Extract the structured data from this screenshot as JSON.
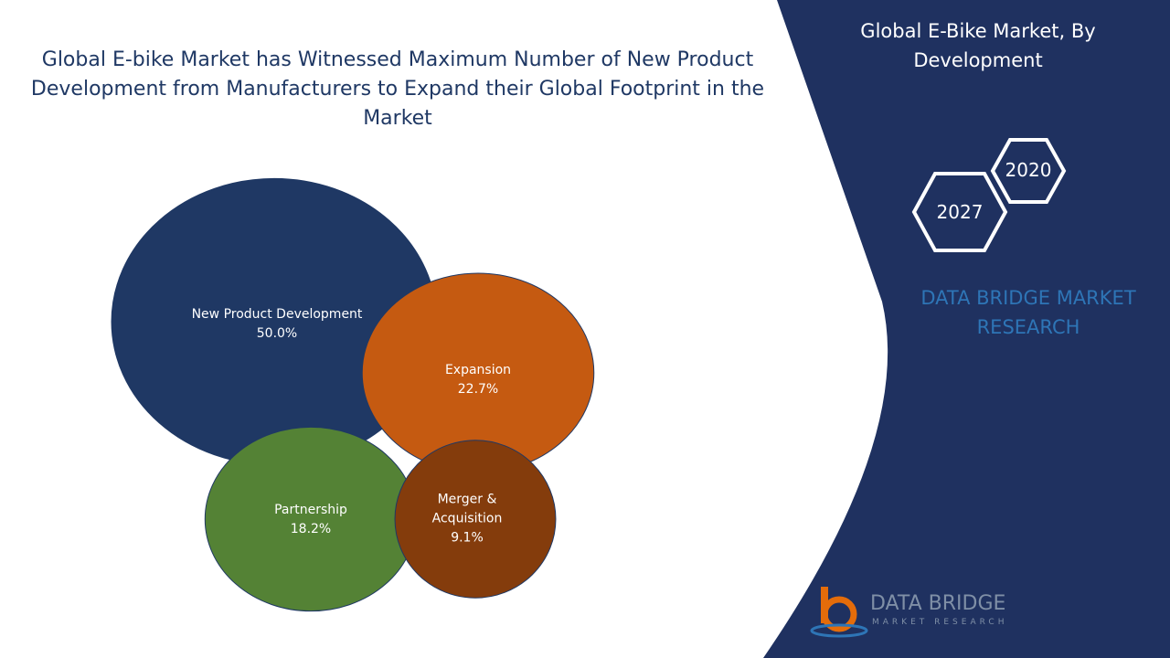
{
  "chart_data": {
    "type": "bubble",
    "title": "Global E-bike Market has Witnessed Maximum Number of New Product Development from Manufacturers to Expand their Global Footprint in the Market",
    "categories": [
      "New Product Development",
      "Expansion",
      "Partnership",
      "Merger & Acquisition"
    ],
    "values": [
      50.0,
      22.7,
      18.2,
      9.1
    ],
    "value_labels": [
      "50.0%",
      "22.7%",
      "18.2%",
      "9.1%"
    ],
    "colors": [
      "#1f3864",
      "#c55a11",
      "#548235",
      "#843c0c"
    ]
  },
  "panel": {
    "title": "Global E-Bike Market, By Development",
    "years": [
      "2020",
      "2027"
    ],
    "brand": "DATA BRIDGE MARKET RESEARCH"
  },
  "logo": {
    "name": "DATA BRIDGE",
    "tagline": "MARKET RESEARCH"
  }
}
